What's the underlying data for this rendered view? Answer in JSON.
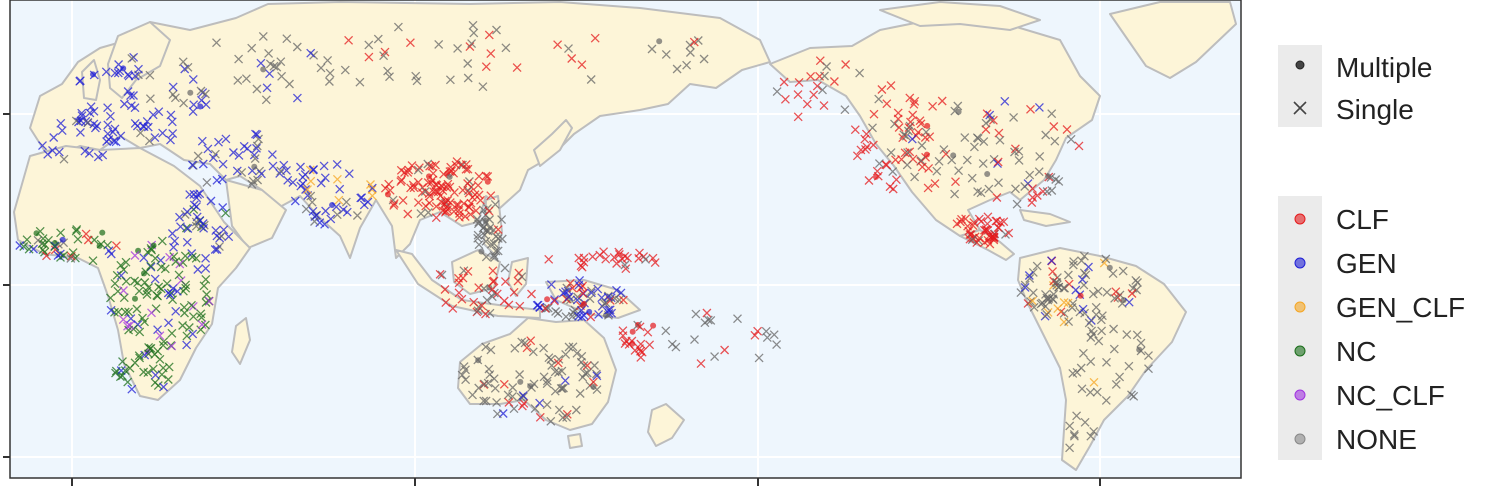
{
  "legend_shape": {
    "items": [
      {
        "label": "Multiple",
        "shape": "dot"
      },
      {
        "label": "Single",
        "shape": "cross"
      }
    ]
  },
  "legend_color": {
    "items": [
      {
        "label": "CLF",
        "color": "#e41a1c"
      },
      {
        "label": "GEN",
        "color": "#1f1fd6"
      },
      {
        "label": "GEN_CLF",
        "color": "#f5a623"
      },
      {
        "label": "NC",
        "color": "#1b6e1b"
      },
      {
        "label": "NC_CLF",
        "color": "#a033e0"
      },
      {
        "label": "NONE",
        "color": "#666666"
      }
    ]
  },
  "colors": {
    "ocean": "#eef6fd",
    "land": "#fdf5d8",
    "land_border": "#bdbdbd",
    "legend_bg": "#ebebeb"
  }
}
